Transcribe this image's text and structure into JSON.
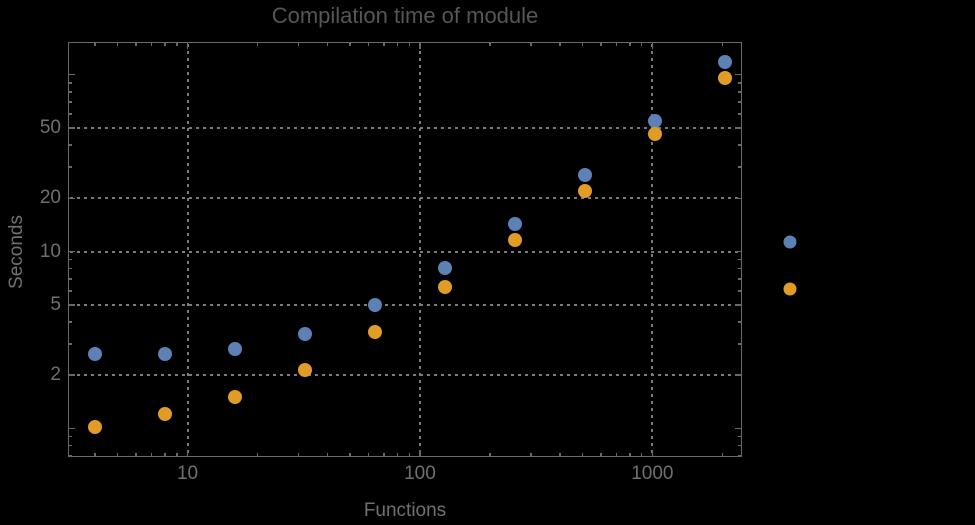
{
  "chart_data": {
    "type": "scatter",
    "title": "Compilation time of module",
    "xlabel": "Functions",
    "ylabel": "Seconds",
    "x_scale": "log",
    "y_scale": "log",
    "x": [
      4,
      8,
      16,
      32,
      64,
      128,
      256,
      512,
      1024,
      2048
    ],
    "series": [
      {
        "name": "blue-series",
        "color": "#5e81b5",
        "values": [
          2.65,
          2.65,
          2.8,
          3.4,
          5.0,
          8.1,
          14.4,
          27,
          55,
          118
        ]
      },
      {
        "name": "orange-series",
        "color": "#e09c24",
        "values": [
          1.02,
          1.2,
          1.5,
          2.15,
          3.5,
          6.3,
          11.7,
          22,
          46,
          96
        ]
      }
    ],
    "xlim": [
      3.06,
      2430
    ],
    "ylim": [
      0.69,
      153
    ],
    "x_tick_values": [
      10,
      100,
      1000
    ],
    "x_tick_labels": [
      "10",
      "100",
      "1000"
    ],
    "y_tick_values": [
      2,
      5,
      10,
      20,
      50
    ],
    "y_tick_labels": [
      "2",
      "5",
      "10",
      "20",
      "50"
    ],
    "y_unlabeled_major_ticks": [
      1,
      100
    ],
    "grid": "dotted",
    "legend_position": "right-of-plot",
    "legend_markers": [
      {
        "name": "blue",
        "color": "#5e81b5"
      },
      {
        "name": "orange",
        "color": "#e09c24"
      }
    ]
  },
  "colors": {
    "background": "#000000",
    "frame": "#696969",
    "grid": "#7b7b7b",
    "title_text": "#565656",
    "label_text": "#707070"
  }
}
